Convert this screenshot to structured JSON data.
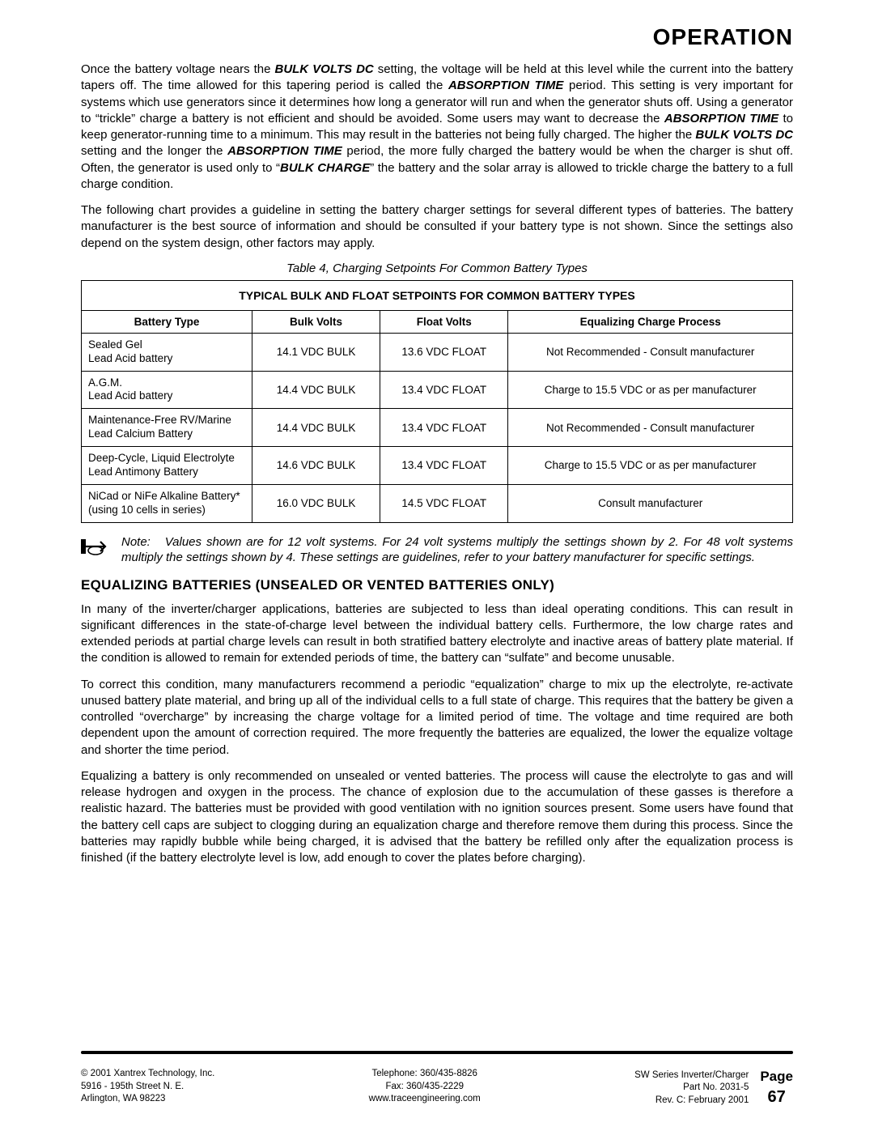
{
  "page": {
    "title": "OPERATION",
    "para1_pre": "Once the battery voltage nears the ",
    "kw_bulkvolts": "BULK VOLTS DC",
    "para1_a": " setting, the voltage will be held at this level while the current into the battery tapers off. The time allowed for this tapering period is called the ",
    "kw_absorptiontime": "ABSORPTION TIME",
    "para1_b": " period. This setting is very important for systems which use generators since it determines how long a generator will run and when the generator shuts off. Using a generator to “trickle” charge a battery is not efficient and should be avoided. Some users may want to decrease the ",
    "para1_c": " to keep generator-running time to a minimum. This may result in the batteries not being fully charged. The higher the ",
    "para1_d": " setting and the longer the ",
    "para1_e": " period, the more fully charged the battery would be when the charger is shut off. Often, the generator is used only to “",
    "kw_bulkcharge": "BULK CHARGE",
    "para1_f": "” the battery and the solar array is allowed to trickle charge the battery to a full charge condition.",
    "para2": "The following chart provides a guideline in setting the battery charger settings for several different types of batteries. The battery manufacturer is the best source of information and should be consulted if your battery type is not shown. Since the settings also depend on the system design, other factors may apply.",
    "table_caption": "Table 4, Charging Setpoints For Common Battery Types",
    "table_title": "TYPICAL BULK AND FLOAT SETPOINTS FOR COMMON BATTERY TYPES",
    "columns": [
      "Battery Type",
      "Bulk Volts",
      "Float Volts",
      "Equalizing Charge Process"
    ],
    "rows": [
      {
        "type_l1": "Sealed Gel",
        "type_l2": "Lead Acid battery",
        "bulk": "14.1 VDC BULK",
        "float": "13.6 VDC FLOAT",
        "eq": "Not Recommended - Consult manufacturer"
      },
      {
        "type_l1": "A.G.M.",
        "type_l2": "Lead Acid battery",
        "bulk": "14.4 VDC BULK",
        "float": "13.4 VDC FLOAT",
        "eq": "Charge to 15.5 VDC or as per manufacturer"
      },
      {
        "type_l1": "Maintenance-Free RV/Marine",
        "type_l2": "Lead Calcium Battery",
        "bulk": "14.4 VDC BULK",
        "float": "13.4 VDC FLOAT",
        "eq": "Not Recommended - Consult manufacturer"
      },
      {
        "type_l1": "Deep-Cycle, Liquid Electrolyte",
        "type_l2": "Lead Antimony Battery",
        "bulk": "14.6 VDC BULK",
        "float": "13.4 VDC FLOAT",
        "eq": "Charge to 15.5 VDC or as per manufacturer"
      },
      {
        "type_l1": "NiCad or NiFe Alkaline Battery*",
        "type_l2": "(using 10 cells in series)",
        "bulk": "16.0 VDC BULK",
        "float": "14.5 VDC FLOAT",
        "eq": "Consult manufacturer"
      }
    ],
    "note_label": "Note:",
    "note_text": "Values shown are for 12 volt systems. For 24 volt systems multiply the settings shown by 2. For 48 volt systems multiply the settings shown by 4. These settings are guidelines, refer to your battery manufacturer for specific settings.",
    "section_heading": "EQUALIZING BATTERIES (UNSEALED OR VENTED BATTERIES ONLY)",
    "eq_para1": "In many of the inverter/charger applications, batteries are subjected to less than ideal operating conditions. This can result in significant differences in the state-of-charge level between the individual battery cells. Furthermore, the low charge rates and extended periods at partial charge levels can result in both stratified battery electrolyte and inactive areas of battery plate material. If the condition is allowed to remain for extended periods of time, the battery can “sulfate” and become unusable.",
    "eq_para2": "To correct this condition, many manufacturers recommend a periodic “equalization” charge to mix up the electrolyte, re-activate unused battery plate material, and bring up all of the individual cells to a full state of charge. This requires that the battery be given a controlled “overcharge” by increasing the charge voltage for a limited period of time. The voltage and time required are both dependent upon the amount of correction required. The more frequently the batteries are equalized, the lower the equalize voltage and shorter the time period.",
    "eq_para3": "Equalizing a battery is only recommended on unsealed or vented batteries. The process will cause the electrolyte to gas and will release hydrogen and oxygen in the process. The chance of explosion due to the accumulation of these gasses is therefore a realistic hazard. The batteries must be provided with good ventilation with no ignition sources present. Some users have found that the battery cell caps are subject to clogging during an equalization charge and therefore remove them during this process. Since the batteries may rapidly bubble while being charged, it is advised that the battery be refilled only after the equalization process is finished (if the battery electrolyte level is low, add enough to cover the plates before charging)."
  },
  "footer": {
    "left": "© 2001  Xantrex Technology, Inc.\n5916 - 195th Street N. E.\nArlington, WA 98223",
    "center": "Telephone: 360/435-8826\nFax: 360/435-2229\nwww.traceengineering.com",
    "right": "SW Series Inverter/Charger\nPart No. 2031-5\nRev. C:  February 2001",
    "page_label": "Page",
    "page_number": "67"
  },
  "colors": {
    "text": "#000000",
    "background": "#ffffff",
    "border": "#000000"
  }
}
